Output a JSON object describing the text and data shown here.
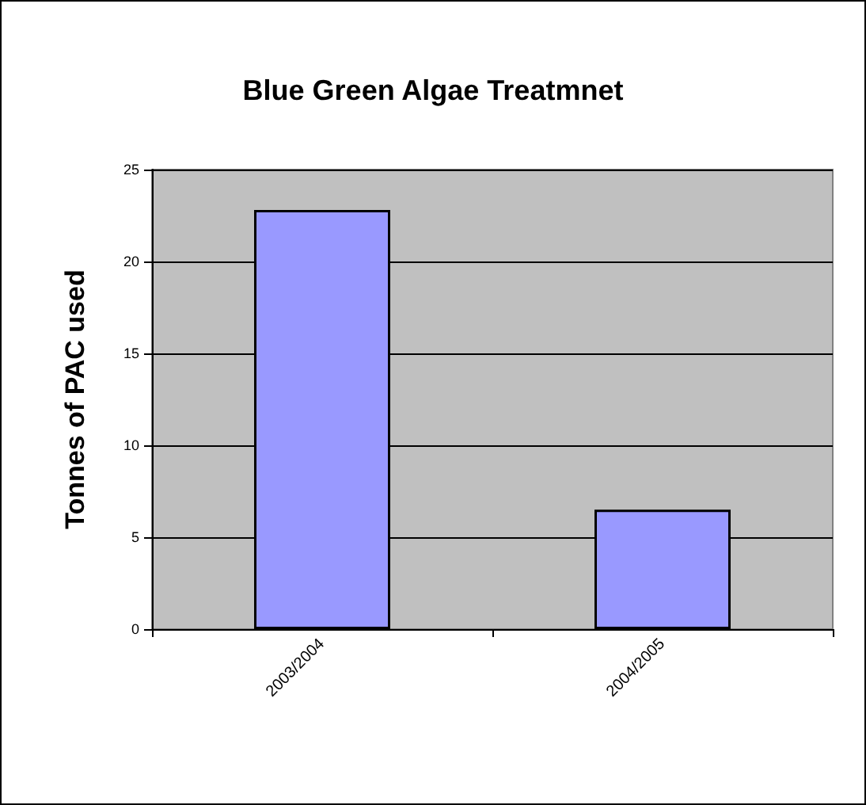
{
  "chart_data": {
    "type": "bar",
    "title": "Blue Green Algae Treatmnet",
    "ylabel": "Tonnes of PAC used",
    "categories": [
      "2003/2004",
      "2004/2005"
    ],
    "values": [
      22.8,
      6.5
    ],
    "color": "#9999ff",
    "ylim": [
      0,
      25
    ],
    "yticks": [
      0,
      5,
      10,
      15,
      20,
      25
    ],
    "grid": "y"
  }
}
